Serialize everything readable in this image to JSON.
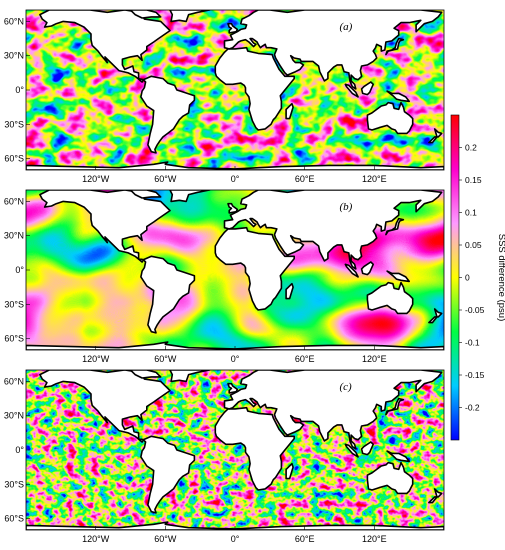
{
  "figure": {
    "panels": [
      {
        "label": "(a)",
        "name": "panel-a"
      },
      {
        "label": "(b)",
        "name": "panel-b"
      },
      {
        "label": "(c)",
        "name": "panel-c"
      }
    ],
    "lat_ticks": [
      "60°N",
      "30°N",
      "0°",
      "30°S",
      "60°S"
    ],
    "lon_ticks": [
      "120°W",
      "60°W",
      "0°",
      "60°E",
      "120°E"
    ],
    "colorbar": {
      "title": "SSS difference (psu)",
      "range": [
        -0.25,
        0.25
      ],
      "tick_values": [
        0.2,
        0.15,
        0.1,
        0.05,
        0,
        -0.05,
        -0.1,
        -0.15,
        -0.2
      ],
      "tick_labels": [
        "0.2",
        "0.15",
        "0.1",
        "0.05",
        "0",
        "-0.05",
        "-0.1",
        "-0.15",
        "-0.2"
      ],
      "colors": [
        "#0000ff",
        "#00ccff",
        "#00ff44",
        "#ffff00",
        "#ff99ff",
        "#ff00cc",
        "#ff0000"
      ]
    }
  }
}
